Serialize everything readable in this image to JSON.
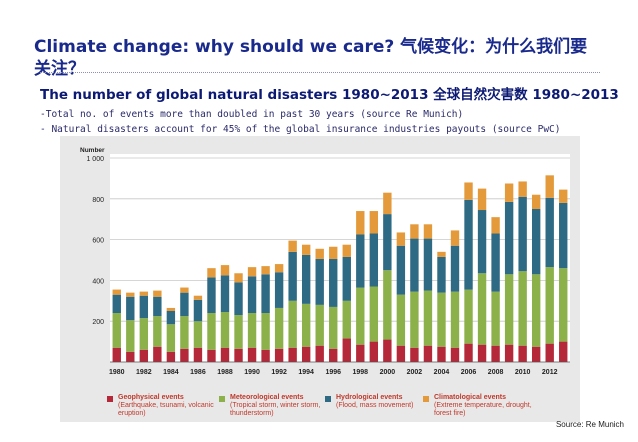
{
  "slide": {
    "title": "Climate change: why should we care? 气候变化：为什么我们要关注？",
    "subtitle": "The number of global natural disasters 1980~2013  全球自然灾害数 1980~2013",
    "bullets": [
      "-Total no. of events more than doubled in past 30 years (source Re Munich)",
      "- Natural disasters account for 45% of the global insurance industries payouts (source PwC)"
    ],
    "source": "Source: Re Munich"
  },
  "chart_data": {
    "type": "bar",
    "stacked": true,
    "ylabel": "Number",
    "ylim": [
      0,
      1000
    ],
    "yticks": [
      "200",
      "400",
      "600",
      "800",
      "1 000"
    ],
    "yticks_values": [
      200,
      400,
      600,
      800,
      1000
    ],
    "xticks": [
      "1980",
      "1982",
      "1984",
      "1986",
      "1988",
      "1990",
      "1992",
      "1994",
      "1996",
      "1998",
      "2000",
      "2002",
      "2004",
      "2006",
      "2008",
      "2010",
      "2012"
    ],
    "categories": [
      1980,
      1981,
      1982,
      1983,
      1984,
      1985,
      1986,
      1987,
      1988,
      1989,
      1990,
      1991,
      1992,
      1993,
      1994,
      1995,
      1996,
      1997,
      1998,
      1999,
      2000,
      2001,
      2002,
      2003,
      2004,
      2005,
      2006,
      2007,
      2008,
      2009,
      2010,
      2011,
      2012,
      2013
    ],
    "series": [
      {
        "name": "Geophysical events",
        "desc": "(Earthquake, tsunami, volcanic eruption)",
        "color": "#b5283a",
        "values": [
          70,
          50,
          60,
          75,
          50,
          65,
          70,
          60,
          70,
          65,
          70,
          60,
          65,
          70,
          75,
          80,
          65,
          115,
          85,
          100,
          110,
          80,
          70,
          80,
          75,
          70,
          90,
          85,
          80,
          85,
          80,
          75,
          90,
          100
        ]
      },
      {
        "name": "Meteorological events",
        "desc": "(Tropical storm, winter storm, thunderstorm)",
        "color": "#8cb04a",
        "values": [
          170,
          155,
          155,
          150,
          135,
          160,
          130,
          180,
          175,
          165,
          170,
          180,
          200,
          230,
          210,
          200,
          205,
          185,
          280,
          270,
          340,
          250,
          275,
          270,
          265,
          275,
          265,
          350,
          265,
          345,
          365,
          355,
          375,
          360
        ]
      },
      {
        "name": "Hydrological events",
        "desc": "(Flood, mass movement)",
        "color": "#2e6a84",
        "values": [
          90,
          115,
          110,
          95,
          65,
          115,
          105,
          175,
          180,
          160,
          180,
          190,
          175,
          240,
          240,
          225,
          235,
          215,
          260,
          260,
          275,
          240,
          260,
          255,
          175,
          225,
          440,
          310,
          285,
          355,
          365,
          320,
          340,
          320
        ]
      },
      {
        "name": "Climatological events",
        "desc": "(Extreme temperature, drought, forest fire)",
        "color": "#e49a3a",
        "values": [
          25,
          20,
          20,
          30,
          15,
          25,
          20,
          45,
          50,
          45,
          45,
          40,
          40,
          55,
          50,
          50,
          60,
          60,
          115,
          110,
          105,
          65,
          70,
          70,
          25,
          75,
          85,
          105,
          80,
          90,
          75,
          70,
          110,
          65
        ]
      }
    ]
  }
}
